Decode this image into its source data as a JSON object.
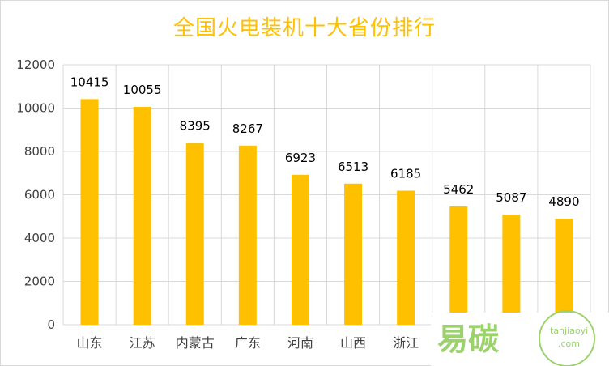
{
  "chart_data": {
    "type": "bar",
    "title": "全国火电装机十大省份排行",
    "xlabel": "",
    "ylabel": "",
    "categories": [
      "山东",
      "江苏",
      "内蒙古",
      "广东",
      "河南",
      "山西",
      "浙江",
      "",
      "",
      ""
    ],
    "values": [
      10415,
      10055,
      8395,
      8267,
      6923,
      6513,
      6185,
      5462,
      5087,
      4890
    ],
    "ylim": [
      0,
      12000
    ],
    "yticks": [
      0,
      2000,
      4000,
      6000,
      8000,
      10000,
      12000
    ],
    "bar_color": "#ffc000",
    "grid": true,
    "legend": "none"
  },
  "watermark": {
    "brand": "易碳",
    "site": "tanjiaoyi",
    "domain": ".com",
    "color": "#9cd26c"
  }
}
